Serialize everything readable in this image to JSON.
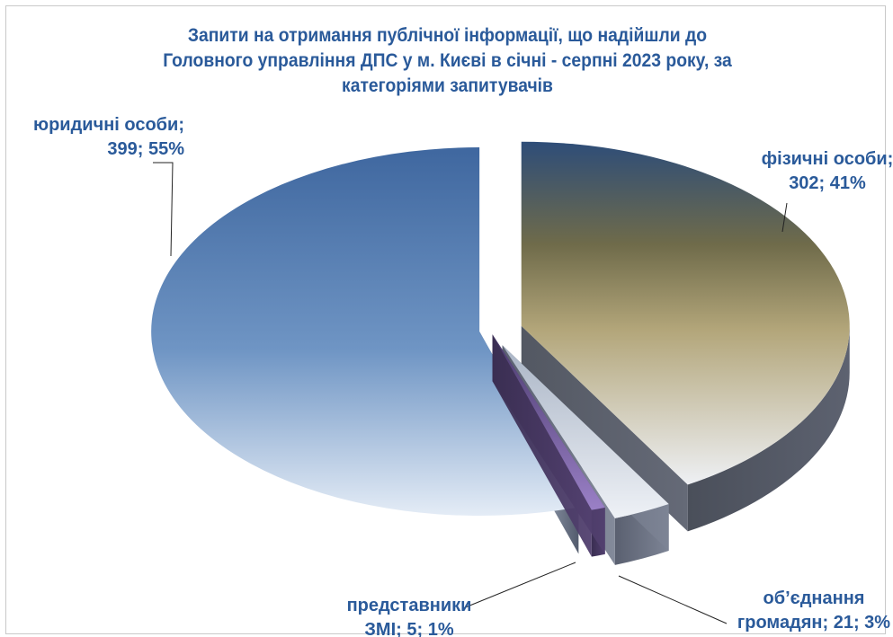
{
  "chart_data": {
    "type": "pie",
    "title": "Запити на отримання публічної інформації, що надійшли до Головного управління ДПС у м. Києві в січні - серпні 2023 року, за категоріями запитувачів",
    "slices": [
      {
        "label": "юридичні особи",
        "value": 399,
        "percent": 55,
        "color": "#5b86bd"
      },
      {
        "label": "фізичні особи",
        "value": 302,
        "percent": 41,
        "color": "#a9a07a"
      },
      {
        "label": "об’єднання громадян",
        "value": 21,
        "percent": 3,
        "color": "#d5dae4"
      },
      {
        "label": "представники ЗМІ",
        "value": 5,
        "percent": 1,
        "color": "#6a4f8e"
      }
    ],
    "labels": [
      {
        "lines": [
          "юридичні особи;",
          "399; 55%"
        ]
      },
      {
        "lines": [
          "фізичні особи;",
          "302; 41%"
        ]
      },
      {
        "lines": [
          "об’єднання",
          "громадян; 21; 3%"
        ]
      },
      {
        "lines": [
          "представники",
          "ЗМІ; 5; 1%"
        ]
      }
    ]
  }
}
